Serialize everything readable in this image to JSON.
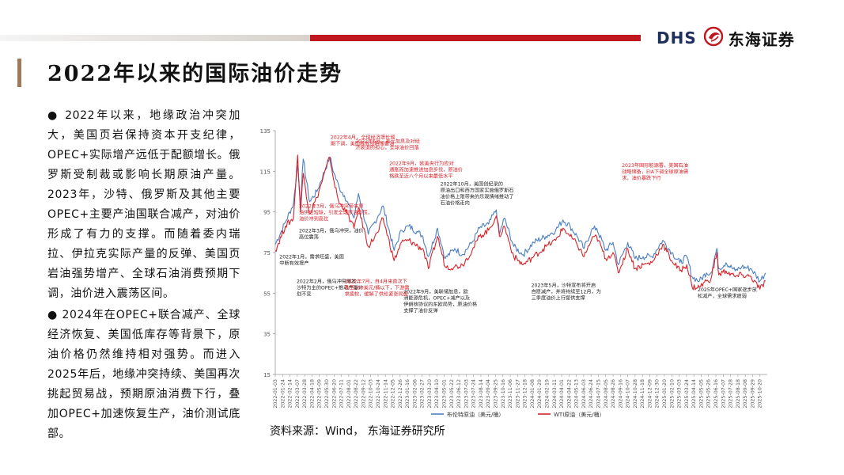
{
  "header": {
    "logo_en": "DHS",
    "logo_cn": "东海证券"
  },
  "title": "2022年以来的国际油价走势",
  "paragraphs": [
    "● 2022年以来，地缘政治冲突加大，美国页岩保持资本开支纪律，OPEC+实际增产远低于配额增长。俄罗斯受制裁或影响长期原油产量。2023年，沙特、俄罗斯及其他主要OPEC+主要产油国联合减产，对油价形成了有力的支撑。而随着委内瑞拉、伊拉克实际产量的反弹、美国页岩油强势增产、全球石油消费预期下调，油价进入震荡区间。",
    "● 2024年在OPEC+联合减产、全球经济恢复、美国低库存等背景下，原油价格仍然维持相对强势。而进入2025年后，地缘冲突持续、美国再次挑起贸易战，预期原油消费下行，叠加OPEC+加速恢复生产，油价测试底部。"
  ],
  "source": "资料来源：Wind， 东海证券研究所",
  "colors": {
    "brent": "#4a7fc1",
    "wti": "#d8232a",
    "accent_red": "#c0171f",
    "title_bar": "#9b7b5a"
  },
  "chart_data": {
    "type": "line",
    "ylim": [
      15,
      135
    ],
    "yticks": [
      "135",
      "115",
      "95",
      "75",
      "55",
      "35",
      "15"
    ],
    "x_tick_labels": [
      "2022-01-03",
      "2022-01-24",
      "2022-02-14",
      "2022-03-07",
      "2022-03-28",
      "2022-04-18",
      "2022-05-09",
      "2022-05-30",
      "2022-06-20",
      "2022-07-11",
      "2022-08-01",
      "2022-08-22",
      "2022-09-12",
      "2022-10-03",
      "2022-10-24",
      "2022-11-14",
      "2022-12-05",
      "2022-12-26",
      "2023-01-16",
      "2023-02-06",
      "2023-02-27",
      "2023-03-20",
      "2023-04-10",
      "2023-05-01",
      "2023-05-22",
      "2023-06-12",
      "2023-07-03",
      "2023-07-24",
      "2023-08-14",
      "2023-09-04",
      "2023-09-25",
      "2023-10-16",
      "2023-11-06",
      "2023-11-27",
      "2023-12-18",
      "2024-01-08",
      "2024-01-29",
      "2024-02-19",
      "2024-03-11",
      "2024-04-01",
      "2024-04-22",
      "2024-05-13",
      "2024-06-03",
      "2024-06-24",
      "2024-07-15",
      "2024-08-05",
      "2024-08-26",
      "2024-09-16",
      "2024-10-07",
      "2024-10-28",
      "2024-11-18",
      "2024-12-09",
      "2024-12-30",
      "2025-01-20",
      "2025-02-10",
      "2025-03-03",
      "2025-03-24",
      "2025-04-14",
      "2025-05-05",
      "2025-05-26",
      "2025-06-16",
      "2025-07-07",
      "2025-07-28",
      "2025-08-18",
      "2025-09-08",
      "2025-09-29",
      "2025-10-20"
    ],
    "series": [
      {
        "name": "布伦特原油（美元/桶）",
        "color": "#4a7fc1",
        "x": [
          "2022-01-03",
          "2022-02-01",
          "2022-02-24",
          "2022-03-08",
          "2022-03-16",
          "2022-03-24",
          "2022-04-11",
          "2022-05-02",
          "2022-06-08",
          "2022-06-20",
          "2022-07-05",
          "2022-07-20",
          "2022-08-16",
          "2022-08-29",
          "2022-09-26",
          "2022-10-24",
          "2022-11-07",
          "2022-12-09",
          "2022-12-30",
          "2023-01-20",
          "2023-02-15",
          "2023-03-01",
          "2023-03-17",
          "2023-04-12",
          "2023-05-04",
          "2023-05-31",
          "2023-06-22",
          "2023-07-20",
          "2023-08-10",
          "2023-09-05",
          "2023-09-27",
          "2023-10-06",
          "2023-10-20",
          "2023-11-16",
          "2023-12-13",
          "2024-01-12",
          "2024-02-16",
          "2024-03-15",
          "2024-04-05",
          "2024-04-25",
          "2024-05-15",
          "2024-06-04",
          "2024-06-25",
          "2024-07-10",
          "2024-08-05",
          "2024-08-26",
          "2024-09-10",
          "2024-10-07",
          "2024-10-28",
          "2024-11-20",
          "2024-12-15",
          "2025-01-15",
          "2025-02-10",
          "2025-03-05",
          "2025-03-25",
          "2025-04-09",
          "2025-04-30",
          "2025-05-20",
          "2025-06-02",
          "2025-06-19",
          "2025-06-24",
          "2025-07-15",
          "2025-08-10",
          "2025-08-29",
          "2025-09-25",
          "2025-10-20",
          "2025-11-05"
        ],
        "values": [
          79,
          90,
          99,
          118,
          99,
          121,
          100,
          105,
          122,
          114,
          107,
          103,
          92,
          104,
          84,
          93,
          98,
          76,
          86,
          88,
          85,
          83,
          73,
          87,
          72,
          77,
          74,
          80,
          87,
          89,
          96,
          84,
          92,
          78,
          74,
          80,
          83,
          86,
          91,
          88,
          83,
          77,
          86,
          87,
          76,
          80,
          69,
          80,
          72,
          73,
          73,
          81,
          75,
          70,
          73,
          63,
          61,
          65,
          65,
          77,
          67,
          70,
          66,
          68,
          67,
          61,
          65
        ]
      },
      {
        "name": "WTI原油（美元/桶）",
        "color": "#d8232a",
        "x": [
          "2022-01-03",
          "2022-02-01",
          "2022-02-24",
          "2022-03-08",
          "2022-03-16",
          "2022-03-24",
          "2022-04-11",
          "2022-05-02",
          "2022-06-08",
          "2022-06-20",
          "2022-07-05",
          "2022-07-20",
          "2022-08-16",
          "2022-08-29",
          "2022-09-26",
          "2022-10-24",
          "2022-11-07",
          "2022-12-09",
          "2022-12-30",
          "2023-01-20",
          "2023-02-15",
          "2023-03-01",
          "2023-03-17",
          "2023-04-12",
          "2023-05-04",
          "2023-05-31",
          "2023-06-22",
          "2023-07-20",
          "2023-08-10",
          "2023-09-05",
          "2023-09-27",
          "2023-10-06",
          "2023-10-20",
          "2023-11-16",
          "2023-12-13",
          "2024-01-12",
          "2024-02-16",
          "2024-03-15",
          "2024-04-05",
          "2024-04-25",
          "2024-05-15",
          "2024-06-04",
          "2024-06-25",
          "2024-07-10",
          "2024-08-05",
          "2024-08-26",
          "2024-09-10",
          "2024-10-07",
          "2024-10-28",
          "2024-11-20",
          "2024-12-15",
          "2025-01-15",
          "2025-02-10",
          "2025-03-05",
          "2025-03-25",
          "2025-04-09",
          "2025-04-30",
          "2025-05-20",
          "2025-06-02",
          "2025-06-19",
          "2025-06-24",
          "2025-07-15",
          "2025-08-10",
          "2025-08-29",
          "2025-09-25",
          "2025-10-20",
          "2025-11-05"
        ],
        "values": [
          76,
          88,
          92,
          123,
          95,
          114,
          94,
          102,
          122,
          110,
          99,
          97,
          87,
          97,
          78,
          85,
          92,
          71,
          80,
          81,
          78,
          77,
          67,
          83,
          68,
          68,
          69,
          76,
          83,
          86,
          93,
          83,
          88,
          73,
          69,
          73,
          78,
          81,
          87,
          83,
          79,
          73,
          81,
          83,
          72,
          75,
          65,
          77,
          67,
          69,
          70,
          79,
          71,
          66,
          69,
          58,
          58,
          61,
          62,
          75,
          64,
          66,
          63,
          64,
          63,
          57,
          61
        ]
      }
    ],
    "annotations": [
      {
        "text": "2022年4月，全球经济增长预期下调，美国释放战略储备油",
        "x": "2022-06-10",
        "y": 131,
        "color": "#d8232a"
      },
      {
        "text": "2022年6月，美元加息及对经济衰退的担心，全球油价回落",
        "x": "2022-08-20",
        "y": 129,
        "color": "#d8232a"
      },
      {
        "text": "2022年9月，欧美央行为应对通胀而加速推进加息步伐，原油价格跌至近八个月以来最低水平",
        "x": "2022-11-25",
        "y": 118,
        "color": "#d8232a"
      },
      {
        "text": "2022年10月，美国创纪录的原油出口和西方国家实施俄罗斯石油价格上限带来的乐观情绪推动了石油价格走向",
        "x": "2023-04-20",
        "y": 108,
        "color": "#222222"
      },
      {
        "text": "2023年国际能源署，美国石油战略储备，EIA下调全球原油需求，油价暴跌下行",
        "x": "2024-09-20",
        "y": 117,
        "color": "#d8232a"
      },
      {
        "text": "2022年3月，俄乌冲突带来原油供应短缺，引发全球原油恐慌，油价冲到高位",
        "x": "2022-03-12",
        "y": 97,
        "color": "#d8232a"
      },
      {
        "text": "2022年3月，俄乌冲突，油价高位震荡",
        "x": "2022-03-12",
        "y": 85,
        "color": "#222222"
      },
      {
        "text": "2022年1月，需求旺盛，美国中断有效增产",
        "x": "2022-01-15",
        "y": 72,
        "color": "#222222"
      },
      {
        "text": "2022年2月，俄乌冲突爆发，沙特为主的OPEC+推动产量计划不变",
        "x": "2022-03-05",
        "y": 60,
        "color": "#222222"
      },
      {
        "text": "2022年7月，自4月来首次下跌至100美元/桶以下，下游需求疲软，缓解了供给紧张局面",
        "x": "2022-07-20",
        "y": 60,
        "color": "#d8232a"
      },
      {
        "text": "2022年9月，美联储加息，欧洲能源危机，OPEC+减产以及伊朗核协议的东欧局势，原油价格支撑了油价反弹",
        "x": "2023-01-05",
        "y": 55,
        "color": "#222222"
      },
      {
        "text": "2023年5月，沙特宣布将开启自愿减产，并将持续至12月，为三季度油价上行提供支撑",
        "x": "2024-01-05",
        "y": 58,
        "color": "#222222"
      },
      {
        "text": "2025年OPEC+国家逐步放松减产，全球需求疲弱",
        "x": "2025-04-25",
        "y": 56,
        "color": "#222222"
      }
    ]
  }
}
